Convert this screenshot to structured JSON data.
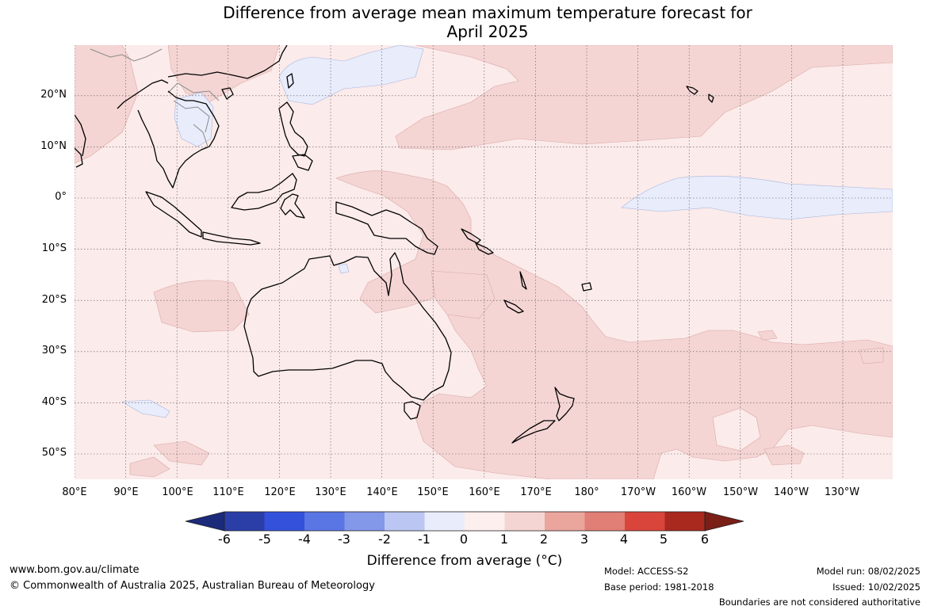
{
  "title": {
    "line1": "Difference from average mean maximum temperature forecast for",
    "line2": "April 2025"
  },
  "map": {
    "latitude_labels": [
      "20°N",
      "10°N",
      "0°",
      "10°S",
      "20°S",
      "30°S",
      "40°S",
      "50°S"
    ],
    "longitude_labels": [
      "80°E",
      "90°E",
      "100°E",
      "110°E",
      "120°E",
      "130°E",
      "140°E",
      "150°E",
      "160°E",
      "170°E",
      "180°",
      "170°W",
      "160°W",
      "150°W",
      "140°W",
      "130°W"
    ],
    "colors": {
      "background_0_to_1": "#fbebea",
      "anomaly_1_to_2": "#f4d5d4",
      "anomaly_minus1_to_0": "#e8ecfb",
      "coastline": "#000000",
      "borders": "#8a8a8a",
      "gridlines": "#555555"
    }
  },
  "colorbar": {
    "ticks": [
      "-6",
      "-5",
      "-4",
      "-3",
      "-2",
      "-1",
      "0",
      "1",
      "2",
      "3",
      "4",
      "5",
      "6"
    ],
    "colors": [
      "#1b2a79",
      "#2b3ea8",
      "#3451dc",
      "#5a75e4",
      "#8498e9",
      "#bcc6f2",
      "#e9ecfb",
      "#fcefee",
      "#f5d5d3",
      "#eaa59c",
      "#e17e75",
      "#d9453a",
      "#a9291f",
      "#7a1e16"
    ],
    "label": "Difference from average (°C)"
  },
  "footer": {
    "website": "www.bom.gov.au/climate",
    "copyright": "© Commonwealth of Australia 2025, Australian Bureau of Meteorology",
    "model": "Model: ACCESS-S2",
    "base_period": "Base period: 1981-2018",
    "model_run": "Model run: 08/02/2025",
    "issued": "Issued: 10/02/2025",
    "boundaries": "Boundaries are not considered authoritative"
  }
}
